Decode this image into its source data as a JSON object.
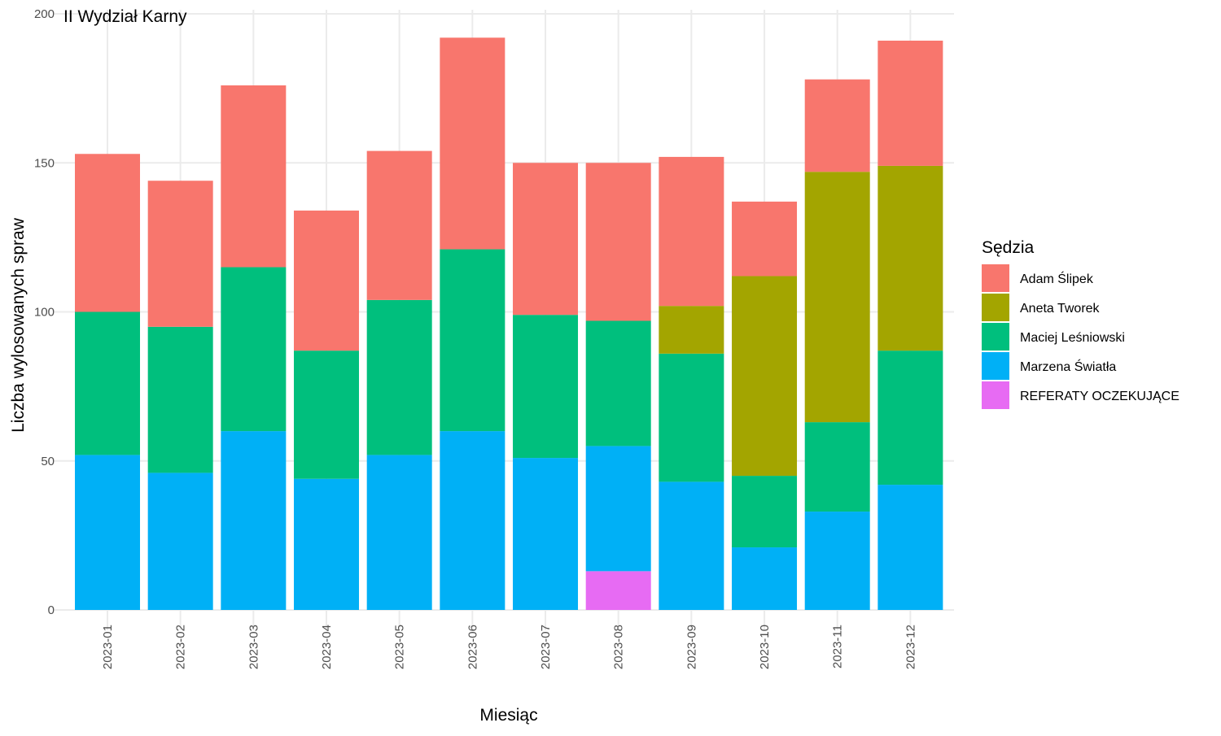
{
  "chart_data": {
    "type": "bar",
    "stacked": true,
    "title": "II Wydział Karny",
    "xlabel": "Miesiąc",
    "ylabel": "Liczba wylosowanych spraw",
    "ylim": [
      0,
      200
    ],
    "yticks": [
      0,
      50,
      100,
      150,
      200
    ],
    "grid": true,
    "legend_title": "Sędzia",
    "legend_position": "right",
    "categories": [
      "2023-01",
      "2023-02",
      "2023-03",
      "2023-04",
      "2023-05",
      "2023-06",
      "2023-07",
      "2023-08",
      "2023-09",
      "2023-10",
      "2023-11",
      "2023-12"
    ],
    "series": [
      {
        "name": "REFERATY OCZEKUJĄCE",
        "color": "#e76bf3",
        "values": [
          0,
          0,
          0,
          0,
          0,
          0,
          0,
          13,
          0,
          0,
          0,
          0
        ]
      },
      {
        "name": "Marzena Światła",
        "color": "#00b0f6",
        "values": [
          52,
          46,
          60,
          44,
          52,
          60,
          51,
          42,
          43,
          21,
          33,
          42
        ]
      },
      {
        "name": "Maciej Leśniowski",
        "color": "#00bf7d",
        "values": [
          48,
          49,
          55,
          43,
          52,
          61,
          48,
          42,
          43,
          24,
          30,
          45
        ]
      },
      {
        "name": "Aneta Tworek",
        "color": "#a3a500",
        "values": [
          0,
          0,
          0,
          0,
          0,
          0,
          0,
          0,
          16,
          67,
          84,
          62
        ]
      },
      {
        "name": "Adam Ślipek",
        "color": "#f8766d",
        "values": [
          53,
          49,
          61,
          47,
          50,
          71,
          51,
          53,
          50,
          25,
          31,
          42
        ]
      }
    ],
    "legend_order": [
      "Adam Ślipek",
      "Aneta Tworek",
      "Maciej Leśniowski",
      "Marzena Światła",
      "REFERATY OCZEKUJĄCE"
    ]
  }
}
